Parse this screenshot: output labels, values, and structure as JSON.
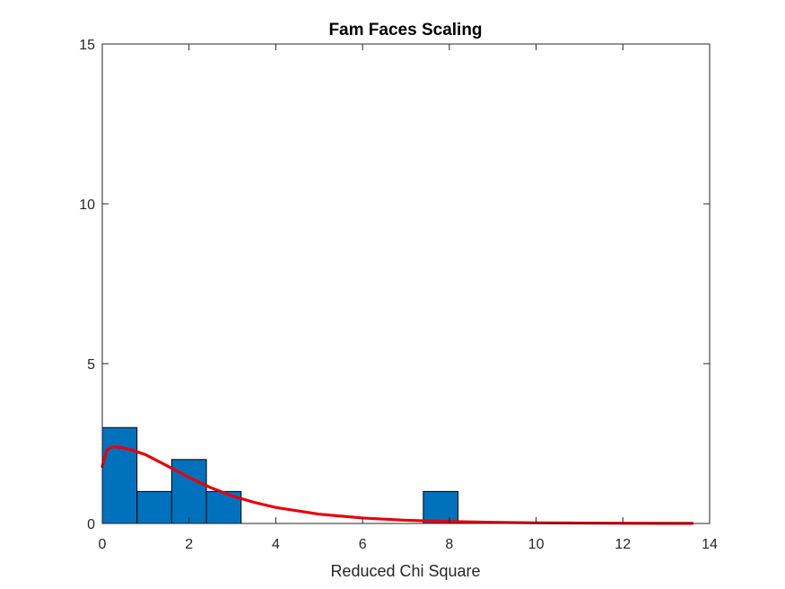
{
  "chart_data": {
    "type": "bar",
    "title": "Fam Faces Scaling",
    "xlabel": "Reduced Chi Square",
    "ylabel": "",
    "xlim": [
      0,
      14
    ],
    "ylim": [
      0,
      15
    ],
    "xticks": [
      "0",
      "2",
      "4",
      "6",
      "8",
      "10",
      "12",
      "14"
    ],
    "yticks": [
      "0",
      "5",
      "10",
      "15"
    ],
    "grid": false,
    "legend": "none",
    "bins": [
      {
        "x0": 0.0,
        "x1": 0.8,
        "count": 3
      },
      {
        "x0": 0.8,
        "x1": 1.6,
        "count": 1
      },
      {
        "x0": 1.6,
        "x1": 2.4,
        "count": 2
      },
      {
        "x0": 2.4,
        "x1": 3.2,
        "count": 1
      },
      {
        "x0": 7.4,
        "x1": 8.2,
        "count": 1
      }
    ],
    "fit_curve": {
      "x": [
        0,
        0.1,
        0.2,
        0.3,
        0.5,
        0.75,
        1.0,
        1.5,
        2.0,
        2.5,
        3.0,
        3.5,
        4.0,
        5.0,
        6.0,
        7.0,
        8.0,
        9.0,
        10.0,
        11.0,
        12.0,
        13.0,
        13.6
      ],
      "y": [
        1.78,
        2.28,
        2.38,
        2.4,
        2.36,
        2.27,
        2.15,
        1.8,
        1.44,
        1.12,
        0.86,
        0.66,
        0.5,
        0.29,
        0.17,
        0.1,
        0.06,
        0.035,
        0.02,
        0.012,
        0.007,
        0.004,
        0.003
      ]
    },
    "colors": {
      "bar_fill": "#0072BD",
      "bar_edge": "#000000",
      "curve": "#E8000B",
      "axis": "#262626"
    }
  }
}
